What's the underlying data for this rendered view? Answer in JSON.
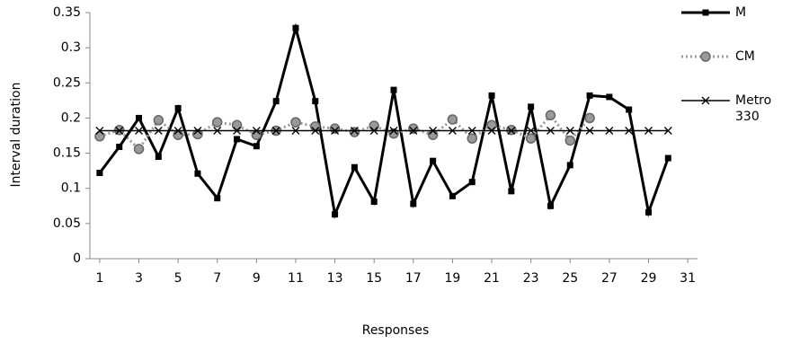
{
  "chart_data": {
    "type": "line",
    "x_label": "Responses",
    "y_label": "Interval duration",
    "xlim": [
      0.5,
      31.5
    ],
    "xticks": [
      1,
      3,
      5,
      7,
      9,
      11,
      13,
      15,
      17,
      19,
      21,
      23,
      25,
      27,
      29,
      31
    ],
    "ylim": [
      0,
      0.35
    ],
    "yticks": [
      0,
      0.05,
      0.1,
      0.15,
      0.2,
      0.25,
      0.3,
      0.35
    ],
    "x": [
      1,
      2,
      3,
      4,
      5,
      6,
      7,
      8,
      9,
      10,
      11,
      12,
      13,
      14,
      15,
      16,
      17,
      18,
      19,
      20,
      21,
      22,
      23,
      24,
      25,
      26,
      27,
      28,
      29,
      30
    ],
    "series": [
      {
        "name": "M",
        "color": "#000000",
        "marker": "square",
        "dash": "solid",
        "values": [
          0.122,
          0.159,
          0.2,
          0.145,
          0.214,
          0.121,
          0.086,
          0.17,
          0.16,
          0.224,
          0.328,
          0.224,
          0.063,
          0.13,
          0.081,
          0.24,
          0.078,
          0.139,
          0.089,
          0.109,
          0.232,
          0.096,
          0.216,
          0.075,
          0.133,
          0.232,
          0.23,
          0.212,
          0.066,
          0.143
        ]
      },
      {
        "name": "CM",
        "color": "#999999",
        "marker": "circle",
        "dash": "dotted",
        "values": [
          0.174,
          0.183,
          0.156,
          0.197,
          0.176,
          0.177,
          0.194,
          0.19,
          0.176,
          0.182,
          0.194,
          0.188,
          0.185,
          0.18,
          0.189,
          0.178,
          0.185,
          0.176,
          0.198,
          0.171,
          0.19,
          0.183,
          0.171,
          0.204,
          0.168,
          0.2,
          null,
          null,
          null,
          null
        ]
      },
      {
        "name": "Metro 330",
        "color": "#000000",
        "marker": "x",
        "dash": "solid",
        "values": [
          0.182,
          0.182,
          0.182,
          0.182,
          0.182,
          0.182,
          0.182,
          0.182,
          0.182,
          0.182,
          0.182,
          0.182,
          0.182,
          0.182,
          0.182,
          0.182,
          0.182,
          0.182,
          0.182,
          0.182,
          0.182,
          0.182,
          0.182,
          0.182,
          0.182,
          0.182,
          0.182,
          0.182,
          0.182,
          0.182
        ]
      }
    ]
  }
}
